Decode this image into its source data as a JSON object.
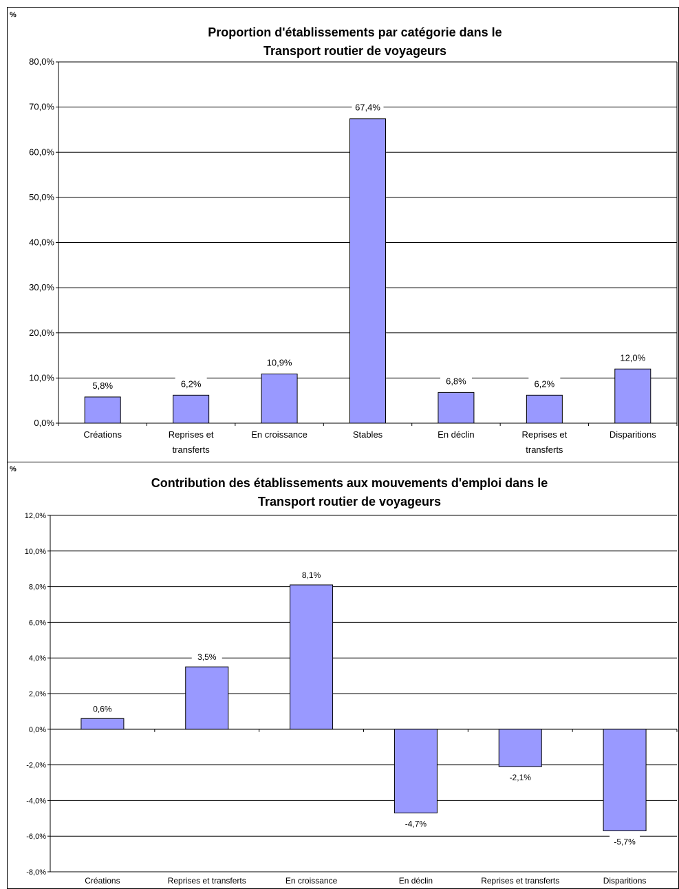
{
  "chart_data": [
    {
      "type": "bar",
      "title_lines": [
        "Proportion d'établissements par catégorie dans le",
        "Transport routier de voyageurs"
      ],
      "unit_label": "%",
      "categories": [
        [
          "Créations"
        ],
        [
          "Reprises et",
          "transferts"
        ],
        [
          "En croissance"
        ],
        [
          "Stables"
        ],
        [
          "En déclin"
        ],
        [
          "Reprises et",
          "transferts"
        ],
        [
          "Disparitions"
        ]
      ],
      "values": [
        5.8,
        6.2,
        10.9,
        67.4,
        6.8,
        6.2,
        12.0
      ],
      "value_labels": [
        "5,8%",
        "6,2%",
        "10,9%",
        "67,4%",
        "6,8%",
        "6,2%",
        "12,0%"
      ],
      "y_ticks": [
        0,
        10,
        20,
        30,
        40,
        50,
        60,
        70,
        80
      ],
      "y_tick_labels": [
        "0,0%",
        "10,0%",
        "20,0%",
        "30,0%",
        "40,0%",
        "50,0%",
        "60,0%",
        "70,0%",
        "80,0%"
      ],
      "ylim": [
        0,
        80
      ],
      "grid": true,
      "bar_color": "#9999ff"
    },
    {
      "type": "bar",
      "title_lines": [
        "Contribution des établissements aux mouvements d'emploi dans le",
        "Transport routier de voyageurs"
      ],
      "unit_label": "%",
      "categories": [
        [
          "Créations"
        ],
        [
          "Reprises et transferts"
        ],
        [
          "En croissance"
        ],
        [
          "En déclin"
        ],
        [
          "Reprises et transferts"
        ],
        [
          "Disparitions"
        ]
      ],
      "values": [
        0.6,
        3.5,
        8.1,
        -4.7,
        -2.1,
        -5.7
      ],
      "value_labels": [
        "0,6%",
        "3,5%",
        "8,1%",
        "-4,7%",
        "-2,1%",
        "-5,7%"
      ],
      "y_ticks": [
        -8,
        -6,
        -4,
        -2,
        0,
        2,
        4,
        6,
        8,
        10,
        12
      ],
      "y_tick_labels": [
        "-8,0%",
        "-6,0%",
        "-4,0%",
        "-2,0%",
        "0,0%",
        "2,0%",
        "4,0%",
        "6,0%",
        "8,0%",
        "10,0%",
        "12,0%"
      ],
      "ylim": [
        -8,
        12
      ],
      "grid": true,
      "bar_color": "#9999ff"
    }
  ]
}
